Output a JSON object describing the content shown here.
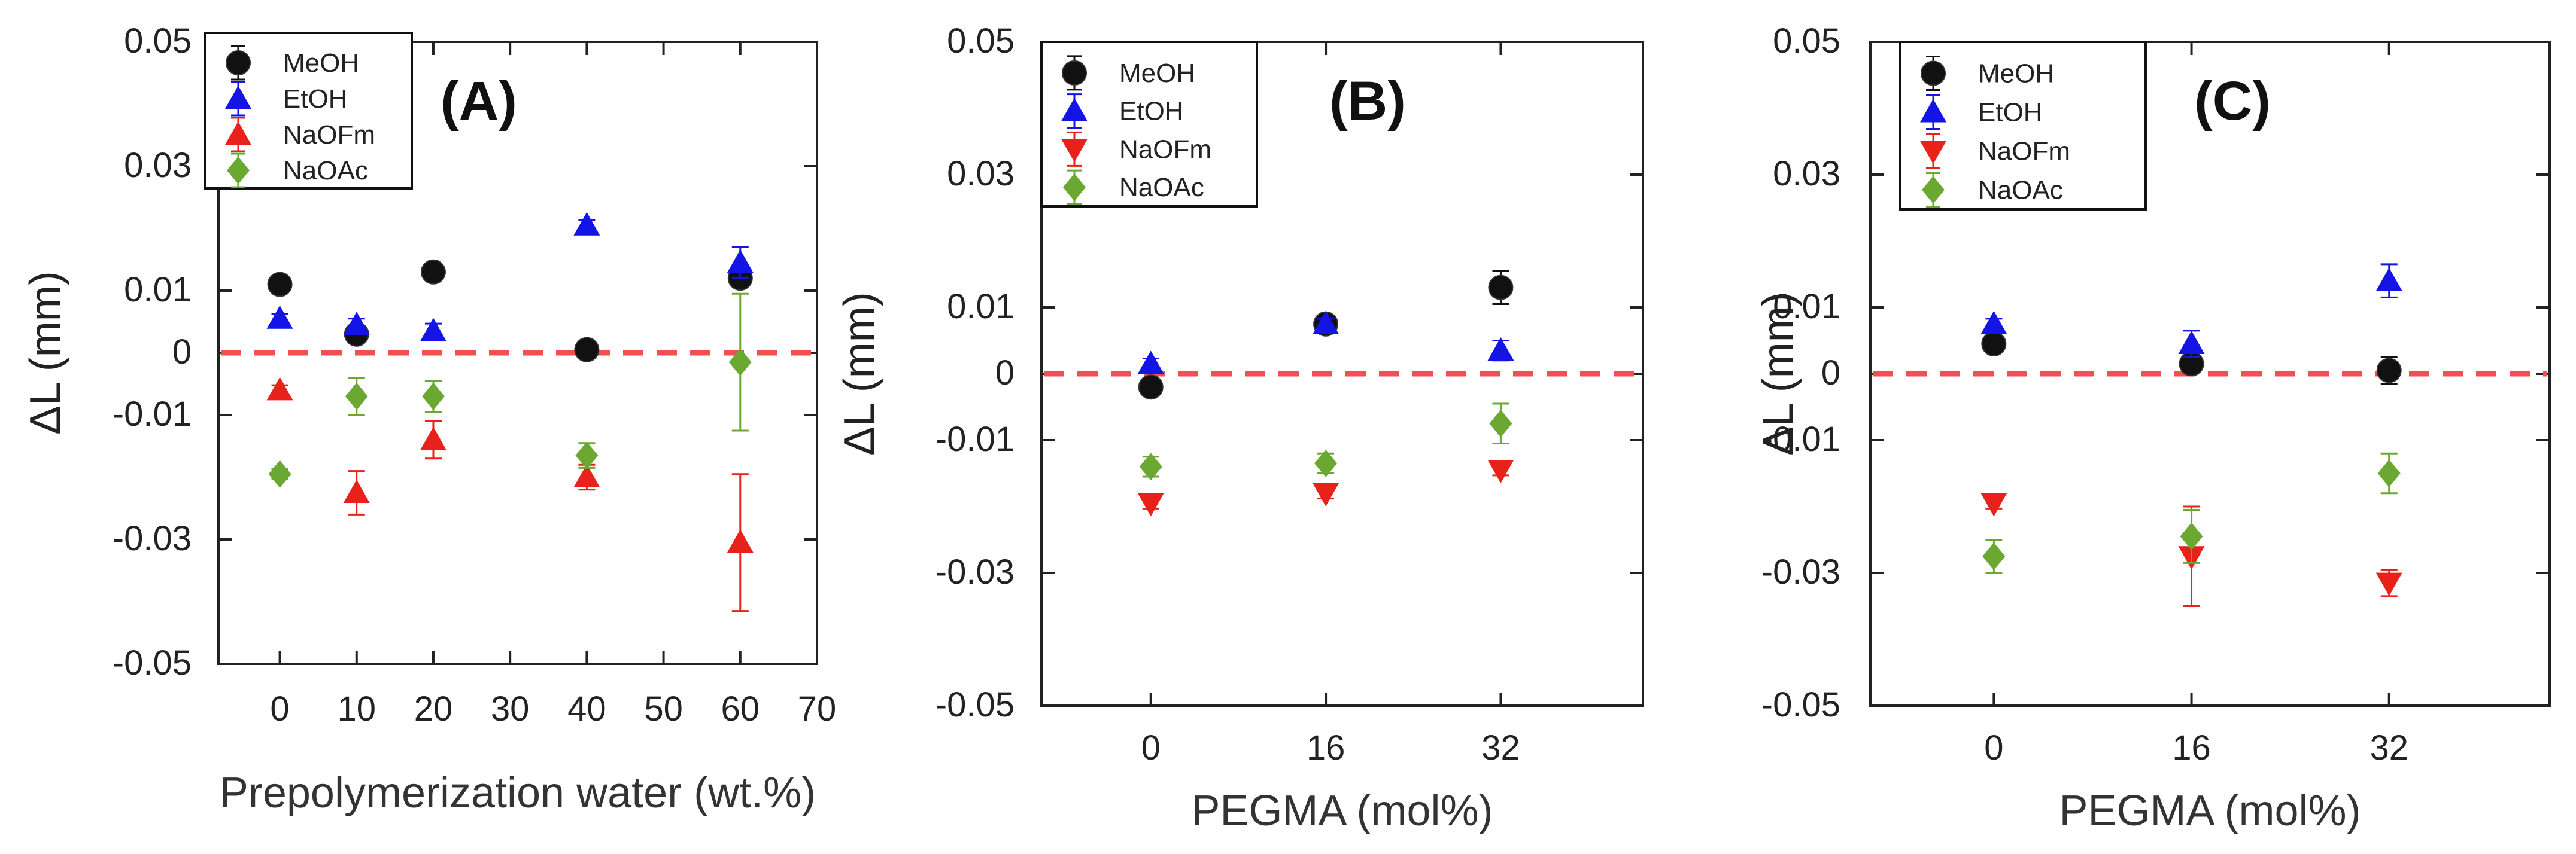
{
  "figure": {
    "colors": {
      "MeOH": "#111111",
      "EtOH": "#1414e6",
      "NaOFm": "#e8211a",
      "NaOAc": "#6aa832",
      "zero_line": "#f05050",
      "axis": "#222222"
    }
  },
  "chart_data": [
    {
      "type": "scatter",
      "panel_label": "(A)",
      "xlabel": "Prepolymerization water (wt.%)",
      "ylabel": "ΔL (mm)",
      "xlim": [
        -8,
        70
      ],
      "ylim": [
        -0.05,
        0.05
      ],
      "xticks": [
        0,
        10,
        20,
        30,
        40,
        50,
        60,
        70
      ],
      "xtick_labels": [
        "0",
        "10",
        "20",
        "30",
        "40",
        "50",
        "60",
        "70"
      ],
      "yticks": [
        -0.05,
        -0.03,
        -0.01,
        0,
        0.01,
        0.03,
        0.05
      ],
      "ytick_labels": [
        "-0.05",
        "-0.03",
        "-0.01",
        "0",
        "0.01",
        "0.03",
        "0.05"
      ],
      "grid": false,
      "legend_position": "top-left",
      "reference_line": {
        "y": 0,
        "style": "dashed"
      },
      "series": [
        {
          "name": "MeOH",
          "marker": "circle",
          "x": [
            0,
            10,
            20,
            40,
            60
          ],
          "y": [
            0.011,
            0.003,
            0.013,
            0.0005,
            0.012
          ],
          "err": [
            0.0008,
            0.0008,
            0.0008,
            0.0005,
            0.0008
          ]
        },
        {
          "name": "EtOH",
          "marker": "triangle-up",
          "x": [
            0,
            10,
            20,
            40,
            60
          ],
          "y": [
            0.0055,
            0.0045,
            0.0035,
            0.0205,
            0.0145
          ],
          "err": [
            0.0008,
            0.001,
            0.0012,
            0.0008,
            0.0025
          ]
        },
        {
          "name": "NaOFm",
          "marker": "triangle-up",
          "x": [
            0,
            10,
            20,
            40,
            60
          ],
          "y": [
            -0.006,
            -0.0225,
            -0.014,
            -0.02,
            -0.0305
          ],
          "err": [
            0.0008,
            0.0035,
            0.003,
            0.002,
            0.011
          ]
        },
        {
          "name": "NaOAc",
          "marker": "diamond",
          "x": [
            0,
            10,
            20,
            40,
            60
          ],
          "y": [
            -0.0195,
            -0.007,
            -0.007,
            -0.0165,
            -0.0015
          ],
          "err": [
            0.0008,
            0.003,
            0.0025,
            0.002,
            0.011
          ]
        }
      ]
    },
    {
      "type": "scatter",
      "panel_label": "(B)",
      "xlabel": "PEGMA (mol%)",
      "ylabel": "ΔL (mm)",
      "xlim": [
        -10,
        45
      ],
      "ylim": [
        -0.05,
        0.05
      ],
      "xticks": [
        0,
        16,
        32
      ],
      "xtick_labels": [
        "0",
        "16",
        "32"
      ],
      "yticks": [
        -0.05,
        -0.03,
        -0.01,
        0,
        0.01,
        0.03,
        0.05
      ],
      "ytick_labels": [
        "-0.05",
        "-0.03",
        "-0.01",
        "0",
        "0.01",
        "0.03",
        "0.05"
      ],
      "grid": false,
      "legend_position": "top-left",
      "reference_line": {
        "y": 0,
        "style": "dashed"
      },
      "series": [
        {
          "name": "MeOH",
          "marker": "circle",
          "x": [
            0,
            16,
            32
          ],
          "y": [
            -0.002,
            0.0075,
            0.013
          ],
          "err": [
            0.0008,
            0.0008,
            0.0025
          ]
        },
        {
          "name": "EtOH",
          "marker": "triangle-up",
          "x": [
            0,
            16,
            32
          ],
          "y": [
            0.0015,
            0.0075,
            0.0035
          ],
          "err": [
            0.0008,
            0.0008,
            0.0015
          ]
        },
        {
          "name": "NaOFm",
          "marker": "triangle-down",
          "x": [
            0,
            16,
            32
          ],
          "y": [
            -0.0195,
            -0.018,
            -0.0145
          ],
          "err": [
            0.0008,
            0.0008,
            0.0008
          ]
        },
        {
          "name": "NaOAc",
          "marker": "diamond",
          "x": [
            0,
            16,
            32
          ],
          "y": [
            -0.014,
            -0.0135,
            -0.0075
          ],
          "err": [
            0.0015,
            0.0015,
            0.003
          ]
        }
      ]
    },
    {
      "type": "scatter",
      "panel_label": "(C)",
      "xlabel": "PEGMA (mol%)",
      "ylabel": "ΔL (mm)",
      "xlim": [
        -10,
        45
      ],
      "ylim": [
        -0.05,
        0.05
      ],
      "xticks": [
        0,
        16,
        32
      ],
      "xtick_labels": [
        "0",
        "16",
        "32"
      ],
      "yticks": [
        -0.05,
        -0.03,
        -0.01,
        0,
        0.01,
        0.03,
        0.05
      ],
      "ytick_labels": [
        "-0.05",
        "-0.03",
        "-0.01",
        "0",
        "0.01",
        "0.03",
        "0.05"
      ],
      "grid": false,
      "legend_position": "top-left",
      "reference_line": {
        "y": 0,
        "style": "dashed"
      },
      "series": [
        {
          "name": "MeOH",
          "marker": "circle",
          "x": [
            0,
            16,
            32
          ],
          "y": [
            0.0045,
            0.0015,
            0.0005
          ],
          "err": [
            0.0008,
            0.0008,
            0.002
          ]
        },
        {
          "name": "EtOH",
          "marker": "triangle-up",
          "x": [
            0,
            16,
            32
          ],
          "y": [
            0.0075,
            0.0045,
            0.014
          ],
          "err": [
            0.0008,
            0.002,
            0.0025
          ]
        },
        {
          "name": "NaOFm",
          "marker": "triangle-down",
          "x": [
            0,
            16,
            32
          ],
          "y": [
            -0.0195,
            -0.0275,
            -0.0315
          ],
          "err": [
            0.0008,
            0.0075,
            0.002
          ]
        },
        {
          "name": "NaOAc",
          "marker": "diamond",
          "x": [
            0,
            16,
            32
          ],
          "y": [
            -0.0275,
            -0.0245,
            -0.015
          ],
          "err": [
            0.0025,
            0.004,
            0.003
          ]
        }
      ]
    }
  ]
}
